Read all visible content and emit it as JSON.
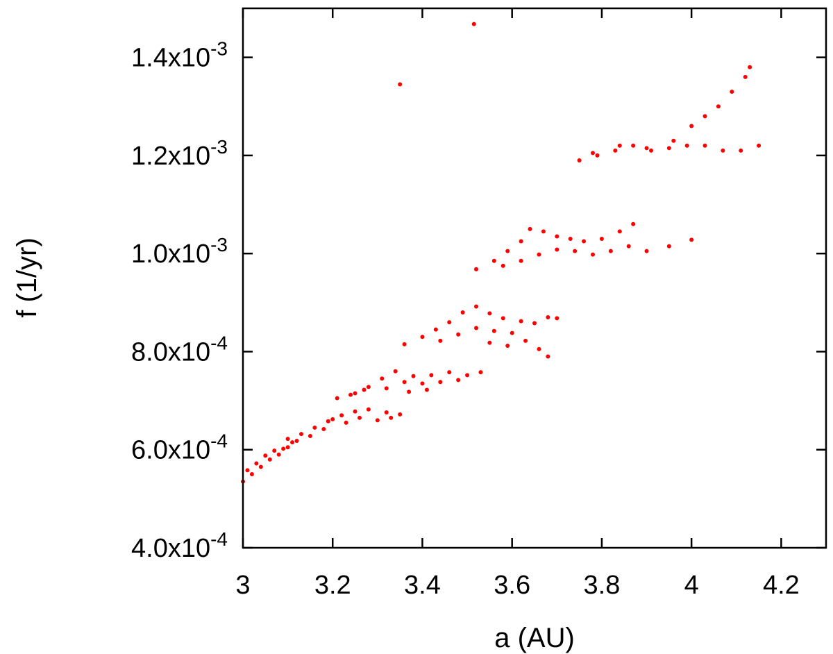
{
  "chart_data": {
    "type": "scatter",
    "xlabel": "a (AU)",
    "ylabel": "f (1/yr)",
    "xlim": [
      3.0,
      4.3
    ],
    "ylim": [
      0.0004,
      0.0015
    ],
    "xticks": [
      {
        "value": 3.0,
        "label": "3"
      },
      {
        "value": 3.2,
        "label": "3.2"
      },
      {
        "value": 3.4,
        "label": "3.4"
      },
      {
        "value": 3.6,
        "label": "3.6"
      },
      {
        "value": 3.8,
        "label": "3.8"
      },
      {
        "value": 4.0,
        "label": "4"
      },
      {
        "value": 4.2,
        "label": "4.2"
      }
    ],
    "yticks": [
      {
        "value": 0.0004,
        "mantissa": "4.0x10",
        "exponent": "-4"
      },
      {
        "value": 0.0006,
        "mantissa": "6.0x10",
        "exponent": "-4"
      },
      {
        "value": 0.0008,
        "mantissa": "8.0x10",
        "exponent": "-4"
      },
      {
        "value": 0.001,
        "mantissa": "1.0x10",
        "exponent": "-3"
      },
      {
        "value": 0.0012,
        "mantissa": "1.2x10",
        "exponent": "-3"
      },
      {
        "value": 0.0014,
        "mantissa": "1.4x10",
        "exponent": "-3"
      }
    ],
    "grid": false,
    "legend": "none",
    "marker_color": "#ff0000",
    "series": [
      {
        "values": [
          [
            3.0,
            0.000535
          ],
          [
            3.02,
            0.00055
          ],
          [
            3.04,
            0.000565
          ],
          [
            3.06,
            0.00058
          ],
          [
            3.08,
            0.00059
          ],
          [
            3.1,
            0.000605
          ],
          [
            3.12,
            0.000618
          ],
          [
            3.01,
            0.000558
          ],
          [
            3.03,
            0.000572
          ],
          [
            3.05,
            0.000588
          ],
          [
            3.07,
            0.000598
          ],
          [
            3.09,
            0.000602
          ],
          [
            3.11,
            0.000615
          ],
          [
            3.1,
            0.000622
          ],
          [
            3.13,
            0.000632
          ],
          [
            3.16,
            0.000645
          ],
          [
            3.19,
            0.000658
          ],
          [
            3.22,
            0.00067
          ],
          [
            3.25,
            0.000678
          ],
          [
            3.28,
            0.000682
          ],
          [
            3.32,
            0.000676
          ],
          [
            3.35,
            0.000672
          ],
          [
            3.15,
            0.000628
          ],
          [
            3.18,
            0.000642
          ],
          [
            3.2,
            0.000662
          ],
          [
            3.23,
            0.000655
          ],
          [
            3.26,
            0.000665
          ],
          [
            3.3,
            0.00066
          ],
          [
            3.33,
            0.000665
          ],
          [
            3.21,
            0.000705
          ],
          [
            3.25,
            0.000715
          ],
          [
            3.28,
            0.000728
          ],
          [
            3.31,
            0.000745
          ],
          [
            3.34,
            0.00076
          ],
          [
            3.38,
            0.00075
          ],
          [
            3.42,
            0.000752
          ],
          [
            3.46,
            0.000758
          ],
          [
            3.5,
            0.000752
          ],
          [
            3.53,
            0.000758
          ],
          [
            3.24,
            0.000712
          ],
          [
            3.27,
            0.000722
          ],
          [
            3.32,
            0.000725
          ],
          [
            3.36,
            0.000738
          ],
          [
            3.4,
            0.000735
          ],
          [
            3.44,
            0.000738
          ],
          [
            3.48,
            0.000742
          ],
          [
            3.37,
            0.000718
          ],
          [
            3.41,
            0.000722
          ],
          [
            3.36,
            0.000815
          ],
          [
            3.4,
            0.00083
          ],
          [
            3.43,
            0.000845
          ],
          [
            3.46,
            0.00086
          ],
          [
            3.49,
            0.00088
          ],
          [
            3.52,
            0.000892
          ],
          [
            3.55,
            0.000878
          ],
          [
            3.58,
            0.000868
          ],
          [
            3.62,
            0.000862
          ],
          [
            3.65,
            0.000858
          ],
          [
            3.68,
            0.00087
          ],
          [
            3.7,
            0.000868
          ],
          [
            3.44,
            0.000822
          ],
          [
            3.48,
            0.000835
          ],
          [
            3.52,
            0.000848
          ],
          [
            3.56,
            0.000842
          ],
          [
            3.6,
            0.000838
          ],
          [
            3.63,
            0.000822
          ],
          [
            3.66,
            0.000805
          ],
          [
            3.68,
            0.00079
          ],
          [
            3.55,
            0.000818
          ],
          [
            3.59,
            0.000812
          ],
          [
            3.52,
            0.000968
          ],
          [
            3.56,
            0.000985
          ],
          [
            3.59,
            0.001005
          ],
          [
            3.62,
            0.001025
          ],
          [
            3.64,
            0.00105
          ],
          [
            3.67,
            0.001045
          ],
          [
            3.7,
            0.001035
          ],
          [
            3.73,
            0.00103
          ],
          [
            3.76,
            0.001025
          ],
          [
            3.8,
            0.00103
          ],
          [
            3.84,
            0.001045
          ],
          [
            3.87,
            0.00106
          ],
          [
            3.58,
            0.000975
          ],
          [
            3.62,
            0.000985
          ],
          [
            3.66,
            0.000998
          ],
          [
            3.7,
            0.001008
          ],
          [
            3.74,
            0.001005
          ],
          [
            3.78,
            0.000998
          ],
          [
            3.82,
            0.001005
          ],
          [
            3.86,
            0.001015
          ],
          [
            3.9,
            0.001005
          ],
          [
            3.95,
            0.001015
          ],
          [
            4.0,
            0.001028
          ],
          [
            3.75,
            0.00119
          ],
          [
            3.79,
            0.0012
          ],
          [
            3.83,
            0.00121
          ],
          [
            3.87,
            0.00122
          ],
          [
            3.91,
            0.00121
          ],
          [
            3.95,
            0.001215
          ],
          [
            3.99,
            0.00122
          ],
          [
            4.03,
            0.00122
          ],
          [
            4.07,
            0.00121
          ],
          [
            4.11,
            0.00121
          ],
          [
            4.15,
            0.00122
          ],
          [
            3.78,
            0.001205
          ],
          [
            3.84,
            0.00122
          ],
          [
            3.9,
            0.001215
          ],
          [
            3.96,
            0.00123
          ],
          [
            4.0,
            0.00126
          ],
          [
            4.03,
            0.00128
          ],
          [
            4.06,
            0.0013
          ],
          [
            4.09,
            0.00133
          ],
          [
            4.12,
            0.00136
          ],
          [
            4.13,
            0.00138
          ],
          [
            3.35,
            0.001345
          ],
          [
            3.515,
            0.001468
          ]
        ]
      }
    ]
  }
}
